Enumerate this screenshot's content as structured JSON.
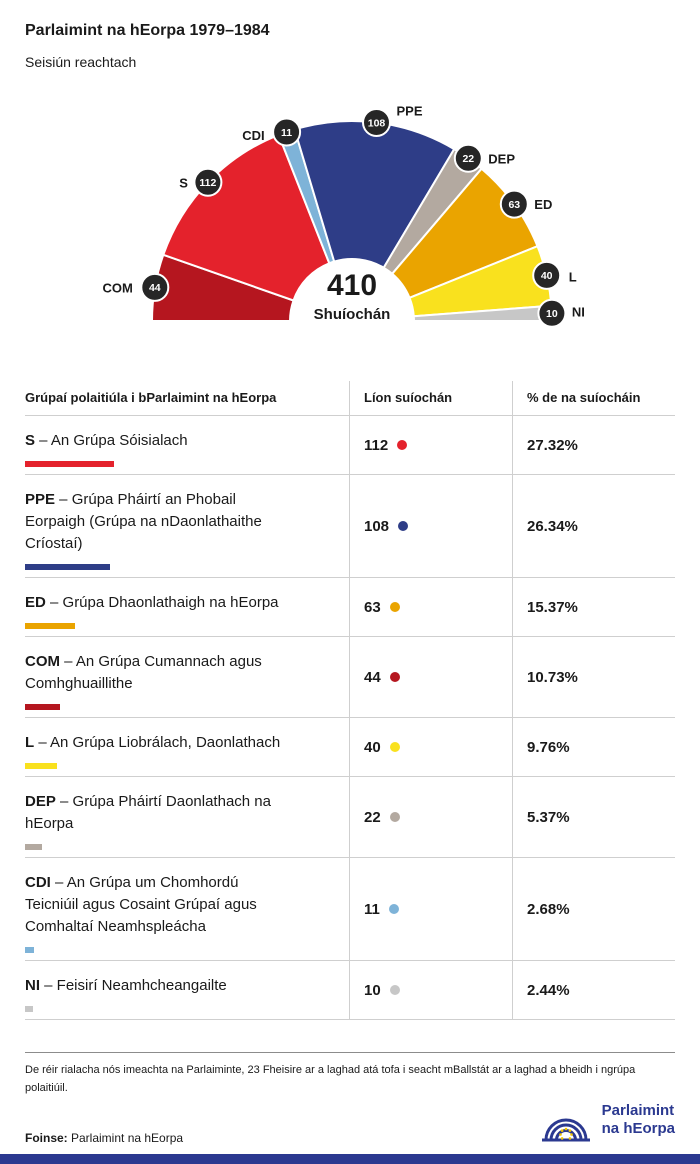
{
  "header": {
    "title": "Parlaimint na hEorpa 1979–1984",
    "subtitle": "Seisiún reachtach"
  },
  "chart_data": {
    "type": "pie",
    "subtype": "hemicycle",
    "title": "Parlaimint na hEorpa 1979–1984",
    "total": 410,
    "center_label": "Shuíochán",
    "legend_position": "around-arc",
    "groups": [
      {
        "abbr": "COM",
        "seats": 44,
        "color": "#b5161f"
      },
      {
        "abbr": "S",
        "seats": 112,
        "color": "#e4222c"
      },
      {
        "abbr": "CDI",
        "seats": 11,
        "color": "#7eb3d8"
      },
      {
        "abbr": "PPE",
        "seats": 108,
        "color": "#2e3d87"
      },
      {
        "abbr": "DEP",
        "seats": 22,
        "color": "#b3a9a0"
      },
      {
        "abbr": "ED",
        "seats": 63,
        "color": "#eaa400"
      },
      {
        "abbr": "L",
        "seats": 40,
        "color": "#f9e11e"
      },
      {
        "abbr": "NI",
        "seats": 10,
        "color": "#c7c7c7"
      }
    ]
  },
  "table": {
    "headers": [
      "Grúpaí polaitiúla i bParlaimint na hEorpa",
      "Líon suíochán",
      "% de na suíocháin"
    ],
    "rows": [
      {
        "abbr": "S",
        "name": "– An Grúpa Sóisialach",
        "seats": "112",
        "pct": "27.32%",
        "pct_value": 27.32,
        "color": "#e4222c"
      },
      {
        "abbr": "PPE",
        "name": "– Grúpa Pháirtí an Phobail Eorpaigh (Grúpa na nDaonlathaithe Críostaí)",
        "seats": "108",
        "pct": "26.34%",
        "pct_value": 26.34,
        "color": "#2e3d87"
      },
      {
        "abbr": "ED",
        "name": "– Grúpa Dhaonlathaigh na hEorpa",
        "seats": "63",
        "pct": "15.37%",
        "pct_value": 15.37,
        "color": "#eaa400"
      },
      {
        "abbr": "COM",
        "name": "– An Grúpa Cumannach agus Comhghuaillithe",
        "seats": "44",
        "pct": "10.73%",
        "pct_value": 10.73,
        "color": "#b5161f"
      },
      {
        "abbr": "L",
        "name": "– An Grúpa Liobrálach, Daonlathach",
        "seats": "40",
        "pct": "9.76%",
        "pct_value": 9.76,
        "color": "#f9e11e"
      },
      {
        "abbr": "DEP",
        "name": "– Grúpa Pháirtí Daonlathach na hEorpa",
        "seats": "22",
        "pct": "5.37%",
        "pct_value": 5.37,
        "color": "#b3a9a0"
      },
      {
        "abbr": "CDI",
        "name": "– An Grúpa um Chomhordú Teicniúil agus Cosaint Grúpaí agus Comhaltaí Neamhspleácha",
        "seats": "11",
        "pct": "2.68%",
        "pct_value": 2.68,
        "color": "#7eb3d8"
      },
      {
        "abbr": "NI",
        "name": "– Feisirí Neamhcheangailte",
        "seats": "10",
        "pct": "2.44%",
        "pct_value": 2.44,
        "color": "#c7c7c7"
      }
    ]
  },
  "footer": {
    "note": "De réir rialacha nós imeachta na Parlaiminte, 23 Fheisire ar a laghad atá tofa i seacht mBallstát ar a laghad a bheidh i ngrúpa polaitiúil.",
    "source_label": "Foinse:",
    "source": " Parlaimint na hEorpa",
    "logo_line1": "Parlaimint",
    "logo_line2": "na hEorpa"
  }
}
